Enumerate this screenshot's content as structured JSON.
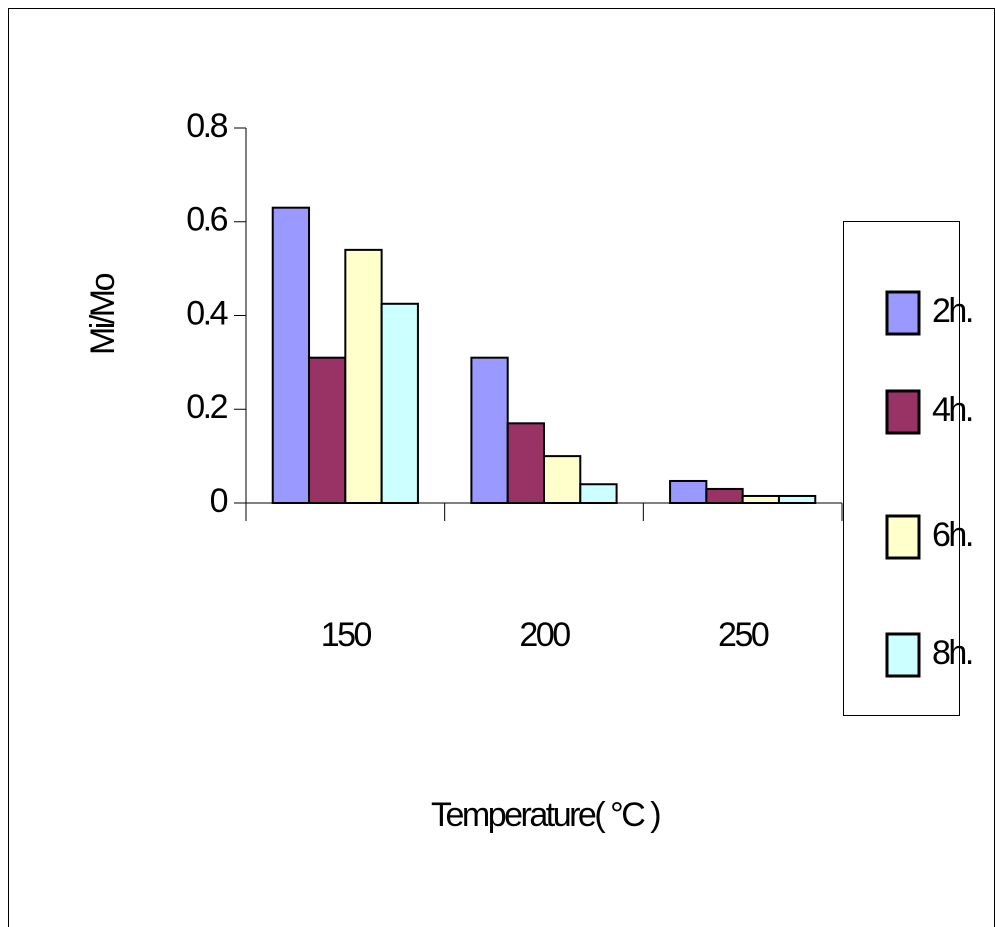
{
  "chart_data": {
    "type": "bar",
    "x_label": "Temperature( °C )",
    "y_label": "Mi/Mo",
    "categories": [
      "150",
      "200",
      "250"
    ],
    "series": [
      {
        "name": "2h.",
        "color": "#9999ff",
        "values": [
          0.63,
          0.31,
          0.047
        ]
      },
      {
        "name": "4h.",
        "color": "#993366",
        "values": [
          0.31,
          0.17,
          0.03
        ]
      },
      {
        "name": "6h.",
        "color": "#ffffcc",
        "values": [
          0.54,
          0.1,
          0.015
        ]
      },
      {
        "name": "8h.",
        "color": "#ccffff",
        "values": [
          0.425,
          0.04,
          0.015
        ]
      }
    ],
    "ylim": [
      0,
      0.8
    ],
    "yticks": [
      0,
      0.2,
      0.4,
      0.6,
      0.8
    ],
    "legend": "right"
  }
}
